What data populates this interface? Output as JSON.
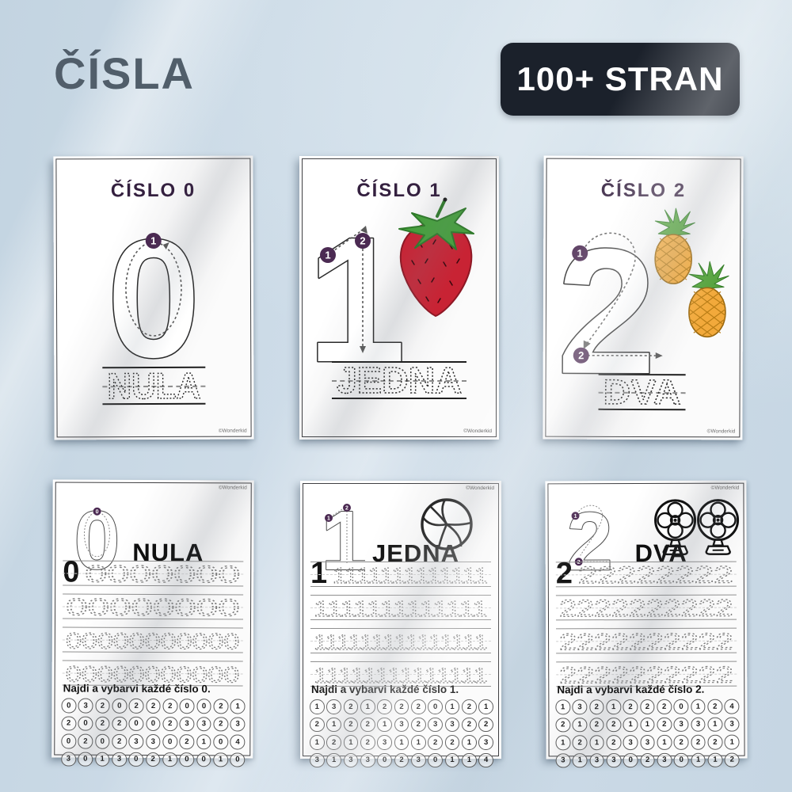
{
  "page": {
    "title": "ČÍSLA",
    "badge": "100+ STRAN"
  },
  "watermark": "©Wonderkid",
  "colors": {
    "background": "#cbdae6",
    "badge_bg": "#1b212b",
    "badge_text": "#ffffff",
    "title_text": "#515e6a",
    "heading_purple": "#34203f",
    "marker_purple": "#4b2a52",
    "strawberry_red": "#c82334",
    "leaf_green": "#46a03c",
    "pineapple_orange": "#f2a93b"
  },
  "top_cards": [
    {
      "heading": "ČÍSLO 0",
      "number": "0",
      "trace_word": "NULA",
      "icon": "none",
      "trace_steps": [
        "1"
      ]
    },
    {
      "heading": "ČÍSLO 1",
      "number": "1",
      "trace_word": "JEDNA",
      "icon": "strawberry",
      "trace_steps": [
        "1",
        "2"
      ]
    },
    {
      "heading": "ČÍSLO 2",
      "number": "2",
      "trace_word": "DVA",
      "icon": "pineapples",
      "trace_steps": [
        "1",
        "2"
      ]
    }
  ],
  "bottom_cards": [
    {
      "number": "0",
      "word": "NULA",
      "icon": "none",
      "trace_rows": [
        {
          "solid": "0",
          "dashed": "0000000"
        },
        {
          "solid": "",
          "dashed": "00000000"
        },
        {
          "solid": "",
          "dashed": "00000000000"
        },
        {
          "solid": "",
          "dashed": "00000000000"
        }
      ],
      "instruction": "Najdi a vybarvi každé číslo 0.",
      "grid": [
        [
          0,
          3,
          2,
          0,
          2,
          2,
          2,
          0,
          0,
          2,
          1
        ],
        [
          2,
          0,
          2,
          2,
          0,
          0,
          2,
          3,
          3,
          2,
          3
        ],
        [
          0,
          2,
          0,
          2,
          3,
          3,
          0,
          2,
          1,
          0,
          4
        ],
        [
          3,
          0,
          1,
          3,
          0,
          2,
          1,
          0,
          0,
          1,
          0
        ]
      ]
    },
    {
      "number": "1",
      "word": "JEDNA",
      "icon": "volleyball",
      "trace_rows": [
        {
          "solid": "1",
          "dashed": "1111111111111"
        },
        {
          "solid": "",
          "dashed": "1111111111111"
        },
        {
          "solid": "",
          "dashed": "111111111111111"
        },
        {
          "solid": "",
          "dashed": "11111111111111"
        }
      ],
      "instruction": "Najdi a vybarvi každé číslo 1.",
      "grid": [
        [
          1,
          3,
          2,
          1,
          2,
          2,
          2,
          0,
          1,
          2,
          1
        ],
        [
          2,
          1,
          2,
          2,
          1,
          3,
          2,
          3,
          3,
          2,
          2
        ],
        [
          1,
          2,
          1,
          2,
          3,
          1,
          1,
          2,
          2,
          1,
          3
        ],
        [
          3,
          1,
          3,
          3,
          0,
          2,
          3,
          0,
          1,
          1,
          4
        ]
      ]
    },
    {
      "number": "2",
      "word": "DVA",
      "icon": "fans",
      "trace_rows": [
        {
          "solid": "2",
          "dashed": "22222222"
        },
        {
          "solid": "",
          "dashed": "2222222222"
        },
        {
          "solid": "",
          "dashed": "2222222222"
        },
        {
          "solid": "",
          "dashed": "2222222222"
        }
      ],
      "instruction": "Najdi a vybarvi každé číslo 2.",
      "grid": [
        [
          1,
          3,
          2,
          1,
          2,
          2,
          2,
          0,
          1,
          2,
          4
        ],
        [
          2,
          1,
          2,
          2,
          1,
          1,
          2,
          3,
          3,
          1,
          3
        ],
        [
          1,
          2,
          1,
          2,
          3,
          3,
          1,
          2,
          2,
          2,
          1
        ],
        [
          3,
          1,
          3,
          3,
          0,
          2,
          3,
          0,
          1,
          1,
          2
        ]
      ]
    }
  ]
}
